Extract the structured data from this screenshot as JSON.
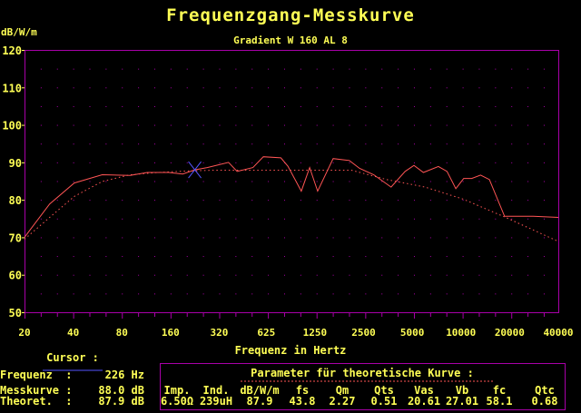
{
  "chart_data": {
    "type": "line",
    "title": "Frequenzgang-Messkurve",
    "subtitle": "Gradient W 160 AL 8",
    "ylabel": "dB/W/m",
    "xlabel": "Frequenz in Hertz",
    "x_scale": "log",
    "xlim": [
      20,
      40000
    ],
    "ylim": [
      50,
      120
    ],
    "y_ticks": [
      50,
      60,
      70,
      80,
      90,
      100,
      110,
      120
    ],
    "x_ticks": [
      20,
      40,
      80,
      160,
      320,
      625,
      1250,
      2500,
      5000,
      10000,
      20000,
      40000
    ],
    "grid": "dotted",
    "colors": {
      "axis": "#a800a8",
      "text": "#ffff55",
      "curve": "#ff5555",
      "cursor": "#5555ff"
    },
    "series": [
      {
        "style": "solid",
        "points": [
          [
            20,
            70.0
          ],
          [
            28.6,
            78.9
          ],
          [
            40.6,
            84.5
          ],
          [
            60.5,
            86.7
          ],
          [
            90,
            86.5
          ],
          [
            115,
            87.3
          ],
          [
            156,
            87.3
          ],
          [
            190,
            86.9
          ],
          [
            226,
            88.0
          ],
          [
            270,
            88.6
          ],
          [
            365,
            90.0
          ],
          [
            413,
            87.6
          ],
          [
            517,
            88.6
          ],
          [
            600,
            91.5
          ],
          [
            770,
            91.2
          ],
          [
            850,
            89.0
          ],
          [
            1030,
            82.3
          ],
          [
            1160,
            88.6
          ],
          [
            1300,
            82.3
          ],
          [
            1620,
            91.0
          ],
          [
            2040,
            90.5
          ],
          [
            2360,
            88.4
          ],
          [
            2890,
            86.7
          ],
          [
            3700,
            83.4
          ],
          [
            4520,
            87.6
          ],
          [
            5120,
            89.2
          ],
          [
            5860,
            87.3
          ],
          [
            7250,
            88.9
          ],
          [
            8200,
            87.6
          ],
          [
            9300,
            83.0
          ],
          [
            10400,
            85.7
          ],
          [
            11650,
            85.7
          ],
          [
            13230,
            86.6
          ],
          [
            15000,
            85.4
          ],
          [
            18600,
            75.6
          ],
          [
            28000,
            75.6
          ],
          [
            40000,
            75.3
          ]
        ]
      },
      {
        "style": "dotted",
        "points": [
          [
            20,
            69.5
          ],
          [
            28.6,
            75.3
          ],
          [
            40.6,
            80.9
          ],
          [
            60.5,
            84.9
          ],
          [
            90,
            86.7
          ],
          [
            135,
            87.3
          ],
          [
            200,
            87.7
          ],
          [
            300,
            87.9
          ],
          [
            2100,
            87.9
          ],
          [
            3470,
            85.4
          ],
          [
            6000,
            83.4
          ],
          [
            10300,
            80.2
          ],
          [
            18900,
            75.3
          ],
          [
            40000,
            68.9
          ]
        ]
      }
    ],
    "cursor": {
      "frequency": 226,
      "db": 88.0
    }
  },
  "cursor_panel": {
    "title": "Cursor :",
    "rows": [
      {
        "label": "Frequenz  :",
        "value": "226 Hz"
      },
      {
        "label": "Messkurve :",
        "value": "88.0 dB"
      },
      {
        "label": "Theoret.  :",
        "value": "87.9 dB"
      }
    ]
  },
  "params_panel": {
    "title": "Parameter für theoretische Kurve :",
    "headers": [
      "Imp.",
      "Ind.",
      "dB/W/m",
      "fs",
      "Qm",
      "Qts",
      "Vas",
      "Vb",
      "fc",
      "Qtc"
    ],
    "values": [
      "6.50Ω",
      "239uH",
      "87.9",
      "43.8",
      "2.27",
      "0.51",
      "20.61",
      "27.01",
      "58.1",
      "0.68"
    ]
  }
}
